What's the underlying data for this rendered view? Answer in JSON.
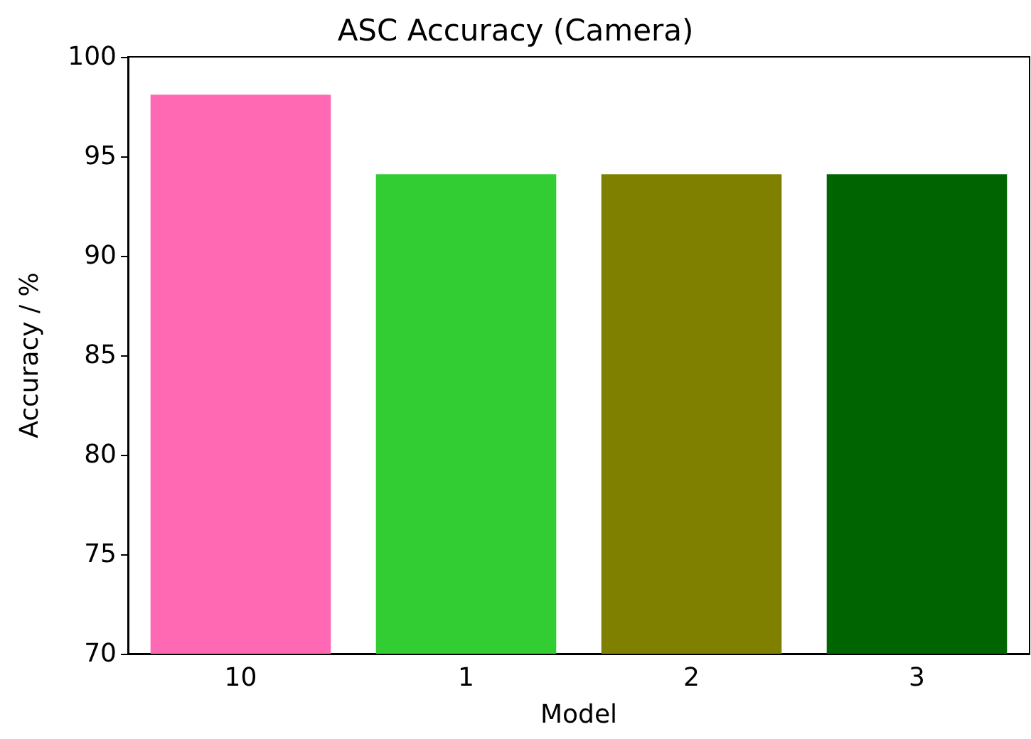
{
  "chart_data": {
    "type": "bar",
    "title": "ASC Accuracy (Camera)",
    "xlabel": "Model",
    "ylabel": "Accuracy / %",
    "categories": [
      "10",
      "1",
      "2",
      "3"
    ],
    "values": [
      98.1,
      94.1,
      94.1,
      94.1
    ],
    "colors": [
      "#ff69b4",
      "#32cd32",
      "#808000",
      "#006400"
    ],
    "ylim": [
      70,
      100
    ],
    "yticks": [
      70,
      75,
      80,
      85,
      90,
      95,
      100
    ],
    "grid": false
  }
}
